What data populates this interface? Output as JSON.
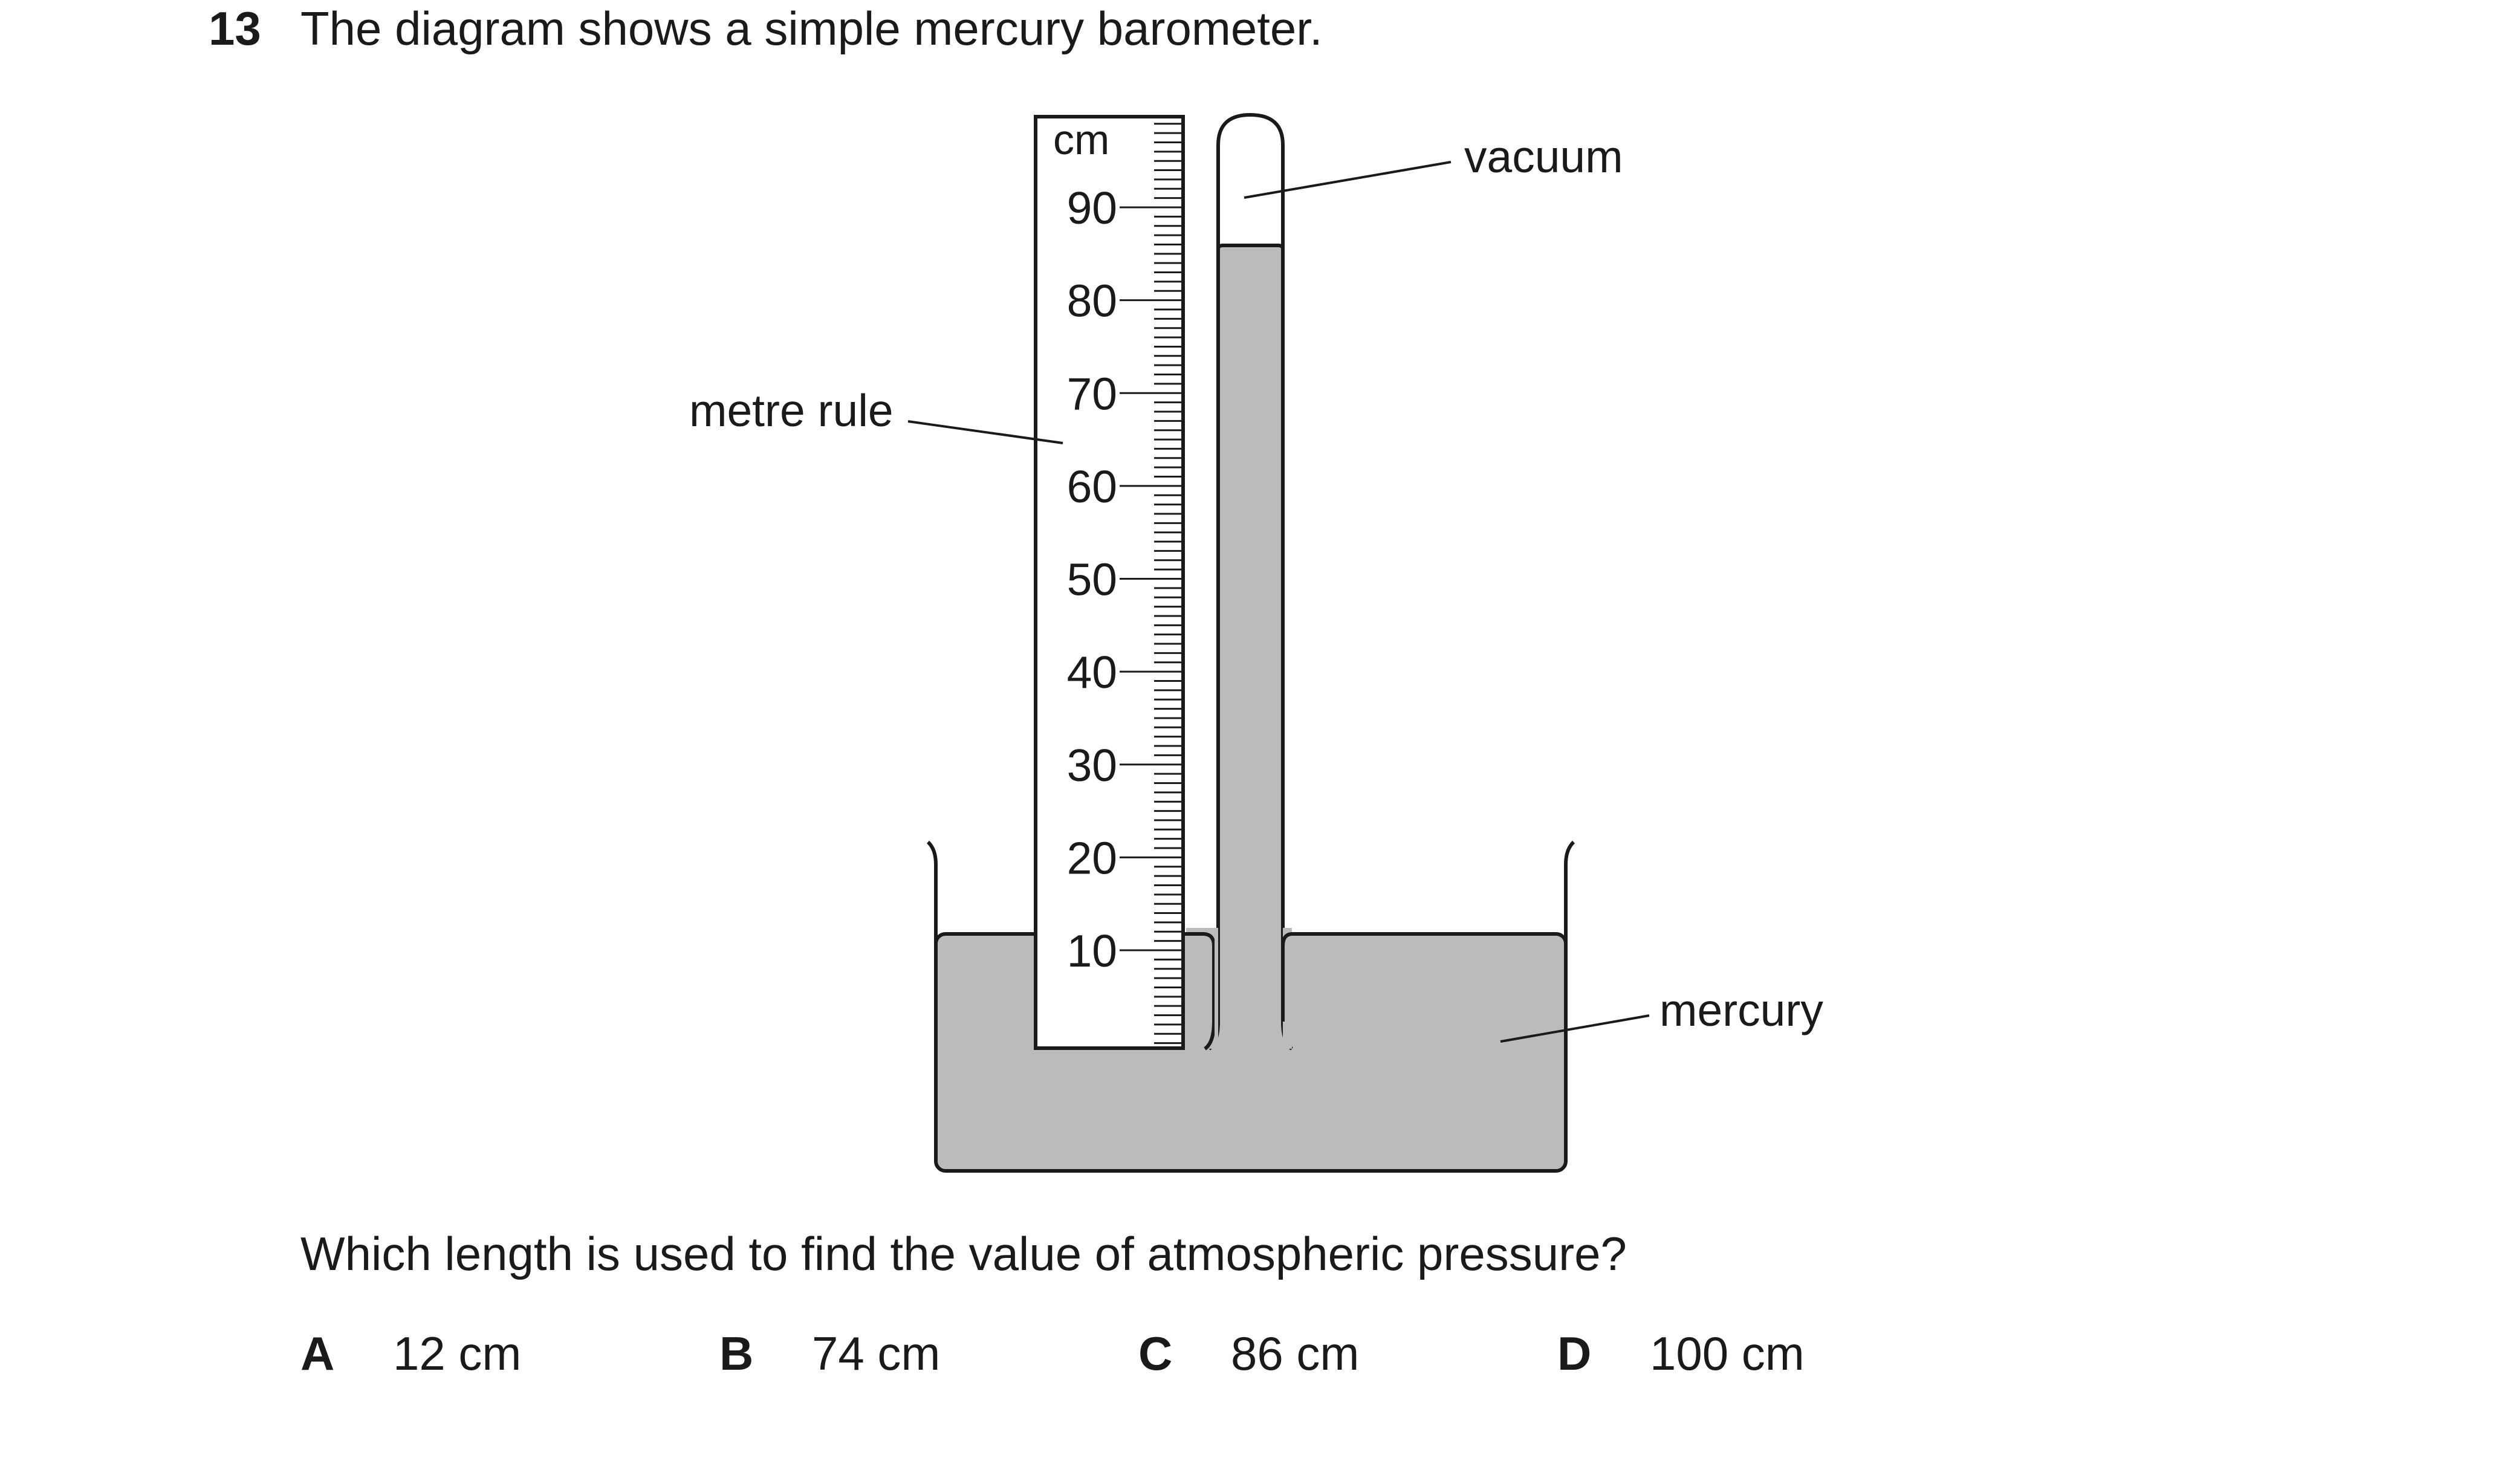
{
  "question": {
    "number": "13",
    "intro": "The diagram shows a simple mercury barometer.",
    "prompt": "Which length is used to find the value of atmospheric pressure?"
  },
  "diagram": {
    "ruler_unit": "cm",
    "ruler_ticks": [
      "90",
      "80",
      "70",
      "60",
      "50",
      "40",
      "30",
      "20",
      "10"
    ],
    "labels": {
      "vacuum": "vacuum",
      "metre_rule": "metre rule",
      "mercury": "mercury"
    },
    "colors": {
      "mercury": "#bbbbbb",
      "outline": "#1a1a1a"
    }
  },
  "options": [
    {
      "letter": "A",
      "value": "12 cm"
    },
    {
      "letter": "B",
      "value": "74 cm"
    },
    {
      "letter": "C",
      "value": "86 cm"
    },
    {
      "letter": "D",
      "value": "100 cm"
    }
  ]
}
